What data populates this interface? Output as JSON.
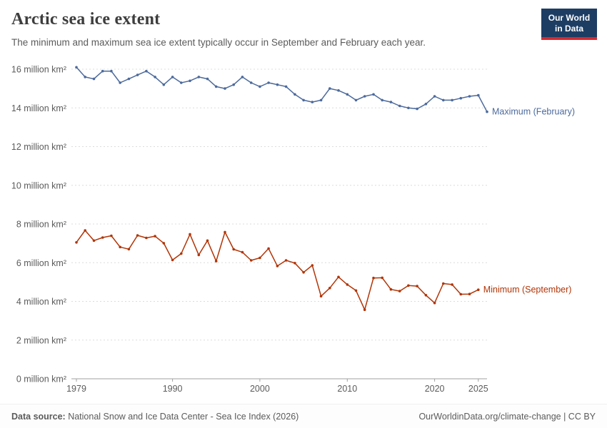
{
  "header": {
    "title": "Arctic sea ice extent",
    "subtitle": "The minimum and maximum sea ice extent typically occur in September and February each year.",
    "logo": {
      "line1": "Our World",
      "line2": "in Data"
    }
  },
  "colors": {
    "title": "#3d3d3d",
    "text_gray": "#5b5b5b",
    "logo_navy": "#1d3d63",
    "logo_red": "#d7292f",
    "grid": "#dcdcdc",
    "axis": "#a1a1a1"
  },
  "chart_data": {
    "type": "line",
    "title": "Arctic sea ice extent",
    "grid": "dashed horizontal gridlines",
    "legend_position": "end-of-line labels, right side",
    "ylim": [
      0,
      16.5
    ],
    "xlabel": "",
    "ylabel": "million km²",
    "x": [
      1979,
      1980,
      1981,
      1982,
      1983,
      1984,
      1985,
      1986,
      1987,
      1988,
      1989,
      1990,
      1991,
      1992,
      1993,
      1994,
      1995,
      1996,
      1997,
      1998,
      1999,
      2000,
      2001,
      2002,
      2003,
      2004,
      2005,
      2006,
      2007,
      2008,
      2009,
      2010,
      2011,
      2012,
      2013,
      2014,
      2015,
      2016,
      2017,
      2018,
      2019,
      2020,
      2021,
      2022,
      2023,
      2024,
      2025,
      2026
    ],
    "x_ticks": [
      1979,
      1990,
      2000,
      2010,
      2020,
      2025
    ],
    "y_ticks": [
      {
        "value": 0,
        "label": "0 million km²"
      },
      {
        "value": 2,
        "label": "2 million km²"
      },
      {
        "value": 4,
        "label": "4 million km²"
      },
      {
        "value": 6,
        "label": "6 million km²"
      },
      {
        "value": 8,
        "label": "8 million km²"
      },
      {
        "value": 10,
        "label": "10 million km²"
      },
      {
        "value": 12,
        "label": "12 million km²"
      },
      {
        "value": 14,
        "label": "14 million km²"
      },
      {
        "value": 16,
        "label": "16 million km²"
      }
    ],
    "series": [
      {
        "name": "Maximum (February)",
        "end_label": "Maximum (February)",
        "color": "#4C6A9C",
        "values": [
          16.1,
          15.6,
          15.5,
          15.9,
          15.9,
          15.3,
          15.5,
          15.7,
          15.9,
          15.6,
          15.2,
          15.6,
          15.3,
          15.4,
          15.6,
          15.5,
          15.1,
          15.0,
          15.2,
          15.6,
          15.3,
          15.1,
          15.3,
          15.2,
          15.1,
          14.7,
          14.4,
          14.3,
          14.4,
          15.0,
          14.9,
          14.7,
          14.4,
          14.6,
          14.7,
          14.4,
          14.3,
          14.1,
          14.0,
          13.95,
          14.2,
          14.6,
          14.4,
          14.4,
          14.5,
          14.6,
          14.65,
          13.8
        ]
      },
      {
        "name": "Minimum (September)",
        "end_label": "Minimum (September)",
        "color": "#B13507",
        "values": [
          7.05,
          7.67,
          7.14,
          7.3,
          7.39,
          6.81,
          6.7,
          7.41,
          7.28,
          7.37,
          7.01,
          6.14,
          6.47,
          7.47,
          6.4,
          7.14,
          6.08,
          7.58,
          6.69,
          6.54,
          6.12,
          6.25,
          6.73,
          5.83,
          6.12,
          5.98,
          5.5,
          5.86,
          4.27,
          4.69,
          5.26,
          4.87,
          4.56,
          3.57,
          5.21,
          5.22,
          4.62,
          4.53,
          4.82,
          4.79,
          4.32,
          3.92,
          4.92,
          4.87,
          4.37,
          4.38,
          4.6,
          null
        ]
      }
    ]
  },
  "footer": {
    "source_label": "Data source:",
    "source_text": " National Snow and Ice Data Center - Sea Ice Index (2026)",
    "right_text": "OurWorldinData.org/climate-change | CC BY"
  }
}
